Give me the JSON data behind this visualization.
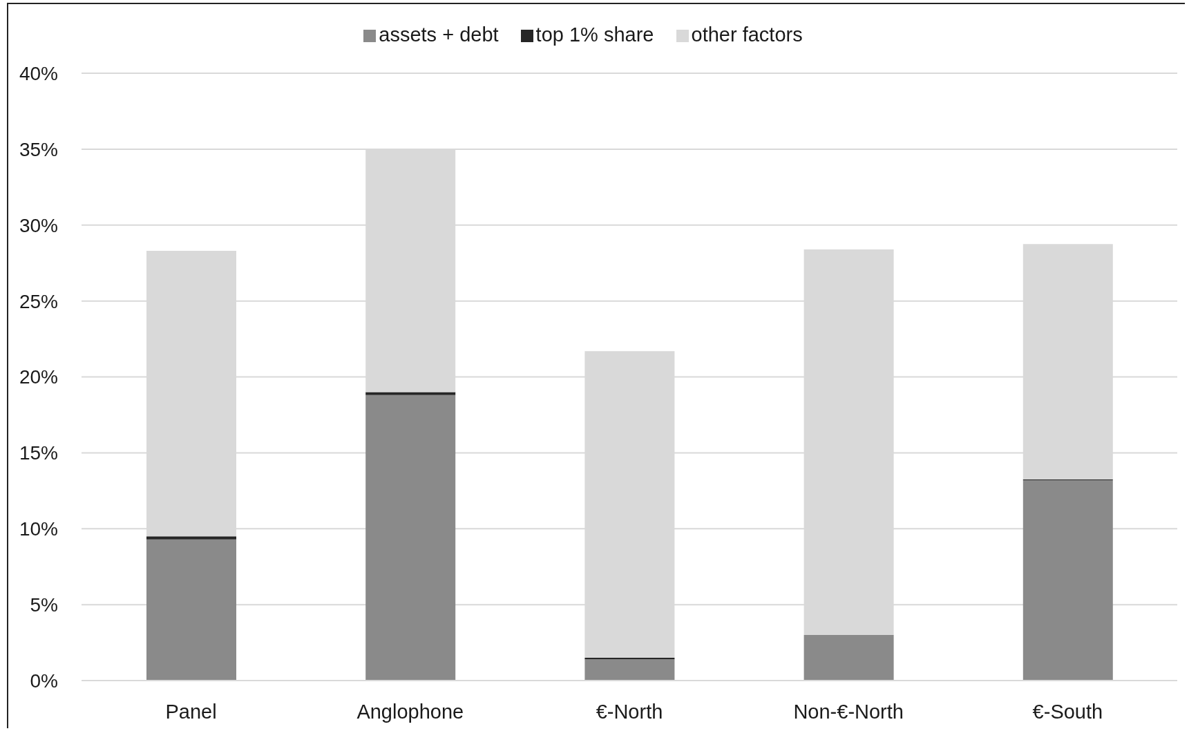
{
  "chart_data": {
    "type": "bar",
    "stacked": true,
    "categories": [
      "Panel",
      "Anglophone",
      "€-North",
      "Non-€-North",
      "€-South"
    ],
    "series": [
      {
        "name": "assets + debt",
        "color": "#8a8a8a",
        "values": [
          9.3,
          18.8,
          1.4,
          3.0,
          13.2
        ]
      },
      {
        "name": "top 1% share",
        "color": "#262626",
        "values": [
          0.2,
          0.2,
          0.1,
          0,
          0.05
        ]
      },
      {
        "name": "other factors",
        "color": "#d9d9d9",
        "values": [
          18.8,
          16.0,
          20.2,
          25.4,
          15.5
        ]
      }
    ],
    "ylim": [
      0,
      40
    ],
    "yticks": [
      {
        "value": 0,
        "label": "0%"
      },
      {
        "value": 5,
        "label": "5%"
      },
      {
        "value": 10,
        "label": "10%"
      },
      {
        "value": 15,
        "label": "15%"
      },
      {
        "value": 20,
        "label": "20%"
      },
      {
        "value": 25,
        "label": "25%"
      },
      {
        "value": 30,
        "label": "30%"
      },
      {
        "value": 35,
        "label": "35%"
      },
      {
        "value": 40,
        "label": "40%"
      }
    ],
    "grid": "y",
    "legend": "top"
  }
}
